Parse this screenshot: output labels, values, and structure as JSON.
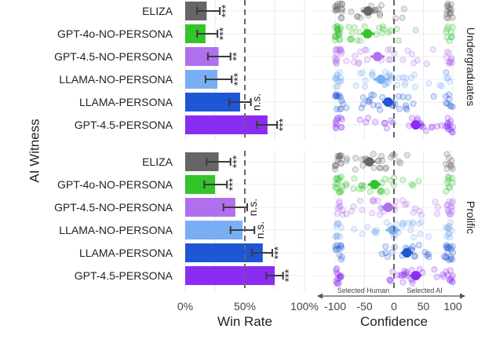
{
  "chart_data": {
    "type": "bar",
    "title": "",
    "y_axis_label": "AI Witness",
    "categories": [
      "ELIZA",
      "GPT-4o-NO-PERSONA",
      "GPT-4.5-NO-PERSONA",
      "LLAMA-NO-PERSONA",
      "LLAMA-PERSONA",
      "GPT-4.5-PERSONA"
    ],
    "colors": [
      "#666666",
      "#33c42a",
      "#b070ee",
      "#7aaef4",
      "#1f56d6",
      "#8a2cf2"
    ],
    "win_rate": {
      "xlabel": "Win Rate",
      "xlim": [
        0,
        100
      ],
      "ticks": [
        "0%",
        "50%",
        "100%"
      ],
      "reference_line": 50
    },
    "confidence": {
      "xlabel": "Confidence",
      "xlim": [
        -100,
        100
      ],
      "ticks": [
        "-100",
        "-50",
        "0",
        "50",
        "100"
      ],
      "reference_line": 0,
      "arrow_left_label": "Selected Human",
      "arrow_right_label": "Selected AI"
    },
    "panels": [
      {
        "facet": "Undergraduates",
        "win_rate": {
          "values": [
            18,
            17,
            28,
            27,
            46,
            69
          ],
          "err_low": [
            10,
            10,
            19,
            17,
            37,
            60
          ],
          "err_high": [
            29,
            27,
            38,
            39,
            55,
            77
          ],
          "significance": [
            "***",
            "***",
            "**",
            "***",
            "n.s.",
            "***"
          ]
        },
        "confidence": {
          "means": [
            -44,
            -45,
            -28,
            -22,
            -10,
            37
          ],
          "err_low": [
            -55,
            -56,
            -40,
            -35,
            -20,
            28
          ],
          "err_high": [
            -33,
            -33,
            -16,
            -8,
            0,
            47
          ]
        }
      },
      {
        "facet": "Prolific",
        "win_rate": {
          "values": [
            28,
            25,
            42,
            48,
            65,
            75
          ],
          "err_low": [
            18,
            16,
            32,
            38,
            56,
            68
          ],
          "err_high": [
            38,
            35,
            52,
            58,
            73,
            82
          ],
          "significance": [
            "***",
            "***",
            "n.s.",
            "n.s.",
            "***",
            "***"
          ]
        },
        "confidence": {
          "means": [
            -42,
            -33,
            -10,
            -2,
            22,
            37
          ],
          "err_low": [
            -52,
            -44,
            -21,
            -14,
            12,
            27
          ],
          "err_high": [
            -32,
            -22,
            1,
            10,
            32,
            47
          ]
        }
      }
    ]
  }
}
